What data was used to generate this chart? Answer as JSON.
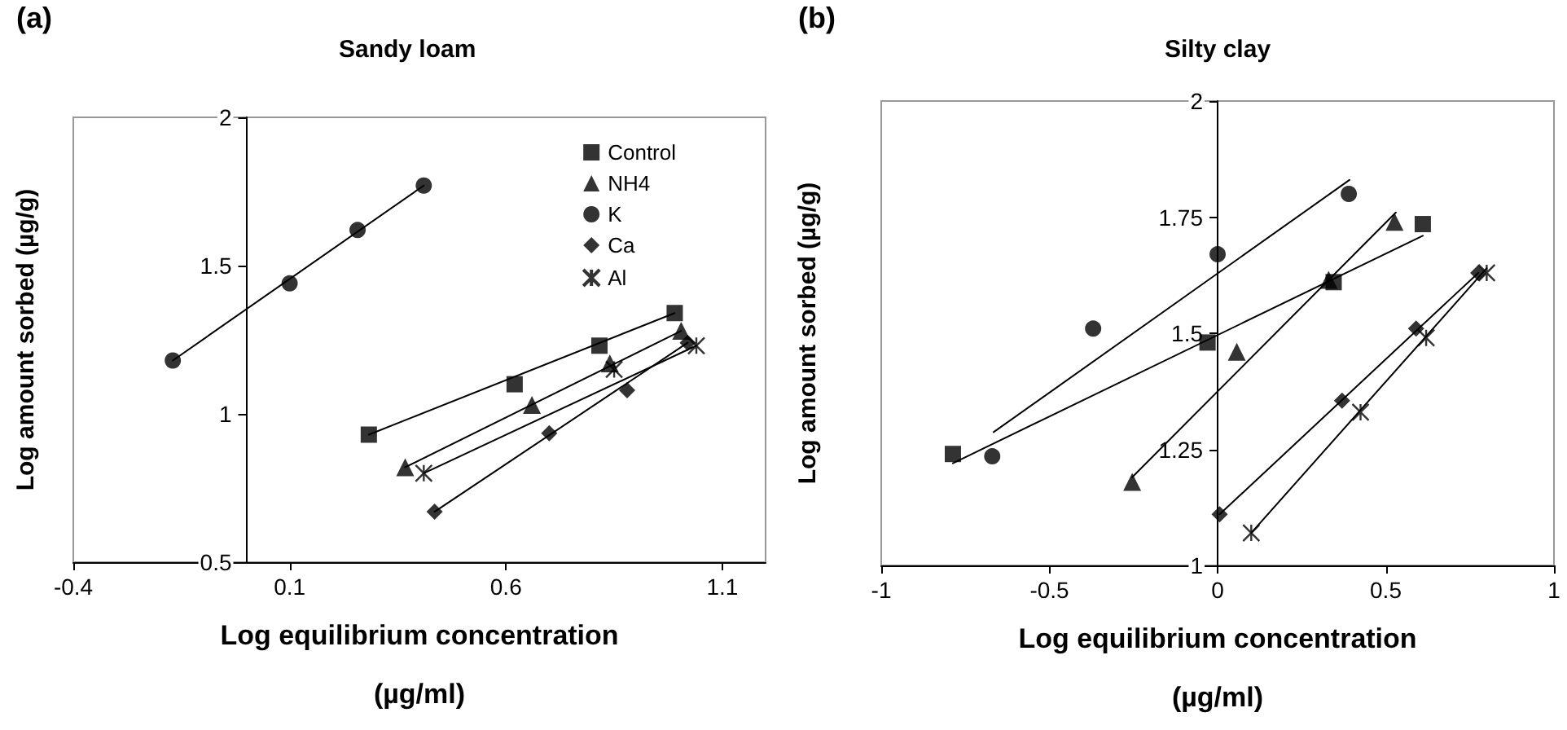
{
  "chart_data": [
    {
      "type": "scatter",
      "title": "Sandy loam",
      "annotations": [
        "(a)"
      ],
      "xlabel": "Log equilibrium concentration (µg/ml)",
      "ylabel": "Log amount sorbed (µg/g)",
      "xlim": [
        -0.4,
        1.2
      ],
      "xticks": [
        -0.4,
        0.1,
        0.6,
        1.1
      ],
      "ylim": [
        0.5,
        2
      ],
      "yticks": [
        0.5,
        1,
        1.5,
        2
      ],
      "grid": false,
      "legend": "top right",
      "line_style": "solid",
      "series": [
        {
          "name": "Control",
          "color": "#000000",
          "marker": "square",
          "x": [
            0.283,
            0.62,
            0.816,
            0.99
          ],
          "values": [
            0.93,
            1.1,
            1.23,
            1.34
          ]
        },
        {
          "name": "NH4",
          "color": "#000000",
          "marker": "triangle",
          "x": [
            0.367,
            0.66,
            0.84,
            1.005
          ],
          "values": [
            0.82,
            1.03,
            1.17,
            1.28
          ]
        },
        {
          "name": "K",
          "color": "#000000",
          "marker": "circle",
          "x": [
            -0.17,
            0.1,
            0.257,
            0.41
          ],
          "values": [
            1.18,
            1.44,
            1.62,
            1.77
          ]
        },
        {
          "name": "Ca",
          "color": "#000000",
          "marker": "diamond",
          "x": [
            0.435,
            0.7,
            0.88,
            1.02
          ],
          "values": [
            0.67,
            0.935,
            1.08,
            1.24
          ]
        },
        {
          "name": "Al",
          "color": "#000000",
          "marker": "cross",
          "x": [
            0.41,
            0.85,
            1.04
          ],
          "values": [
            0.8,
            1.15,
            1.23
          ]
        },
        {
          "type": "line",
          "color": "#000000",
          "marker": "none",
          "x": [
            0.283,
            0.99
          ],
          "values": [
            0.93,
            1.34
          ]
        },
        {
          "type": "line",
          "color": "#000000",
          "marker": "none",
          "x": [
            0.367,
            1.005
          ],
          "values": [
            0.82,
            1.28
          ]
        },
        {
          "type": "line",
          "color": "#000000",
          "marker": "none",
          "x": [
            -0.17,
            0.41
          ],
          "values": [
            1.18,
            1.77
          ]
        },
        {
          "type": "line",
          "color": "#000000",
          "marker": "none",
          "x": [
            0.435,
            1.02
          ],
          "values": [
            0.67,
            1.24
          ]
        },
        {
          "type": "line",
          "color": "#000000",
          "marker": "none",
          "x": [
            0.41,
            1.04
          ],
          "values": [
            0.8,
            1.23
          ]
        }
      ]
    },
    {
      "type": "scatter",
      "title": "Silty clay",
      "annotations": [
        "(b)"
      ],
      "xlabel": "Log equilibrium concentration (µg/ml)",
      "ylabel": "Log amount sorbed (µg/g)",
      "xlim": [
        -1,
        1
      ],
      "xticks": [
        -1,
        -0.5,
        0,
        0.5,
        1
      ],
      "ylim": [
        1,
        2
      ],
      "yticks": [
        1,
        1.25,
        1.5,
        1.75,
        2
      ],
      "grid": false,
      "line_style": "solid",
      "series": [
        {
          "color": "#000000",
          "marker": "square",
          "x": [
            -0.787,
            -0.03,
            0.345,
            0.61
          ],
          "values": [
            1.24,
            1.48,
            1.61,
            1.735
          ]
        },
        {
          "color": "#000000",
          "marker": "triangle",
          "x": [
            -0.254,
            0.057,
            0.33,
            0.526
          ],
          "values": [
            1.18,
            1.46,
            1.615,
            1.74
          ]
        },
        {
          "color": "#000000",
          "marker": "circle",
          "x": [
            -0.67,
            -0.37,
            0.0,
            0.39
          ],
          "values": [
            1.235,
            1.51,
            1.67,
            1.8
          ]
        },
        {
          "color": "#000000",
          "marker": "diamond",
          "x": [
            0.006,
            0.37,
            0.59,
            0.775
          ],
          "values": [
            1.11,
            1.355,
            1.51,
            1.63
          ]
        },
        {
          "color": "#000000",
          "marker": "cross",
          "x": [
            0.1,
            0.425,
            0.62,
            0.8
          ],
          "values": [
            1.07,
            1.33,
            1.49,
            1.63
          ]
        },
        {
          "type": "line",
          "color": "#000000",
          "marker": "none",
          "x": [
            -0.787,
            0.61
          ],
          "values": [
            1.22,
            1.71
          ]
        },
        {
          "type": "line",
          "color": "#000000",
          "marker": "none",
          "x": [
            -0.254,
            0.53
          ],
          "values": [
            1.19,
            1.76
          ]
        },
        {
          "type": "line",
          "color": "#000000",
          "marker": "none",
          "x": [
            -0.666,
            0.392
          ],
          "values": [
            1.287,
            1.83
          ]
        },
        {
          "type": "line",
          "color": "#000000",
          "marker": "none",
          "x": [
            0.006,
            0.775
          ],
          "values": [
            1.11,
            1.63
          ]
        },
        {
          "type": "line",
          "color": "#000000",
          "marker": "none",
          "x": [
            0.1,
            0.8
          ],
          "values": [
            1.07,
            1.64
          ]
        }
      ]
    }
  ]
}
